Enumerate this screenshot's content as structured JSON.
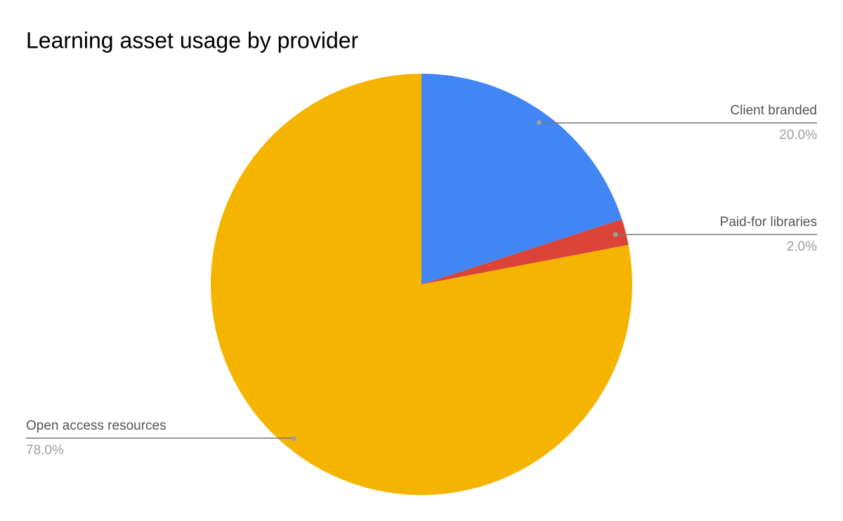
{
  "chart_data": {
    "type": "pie",
    "title": "Learning asset usage by provider",
    "categories": [
      "Client branded",
      "Paid-for libraries",
      "Open access resources"
    ],
    "values": [
      20,
      2,
      78
    ],
    "value_labels": [
      "20.0%",
      "2.0%",
      "78.0%"
    ],
    "colors": [
      "#4285f4",
      "#db4437",
      "#f4b400"
    ]
  }
}
